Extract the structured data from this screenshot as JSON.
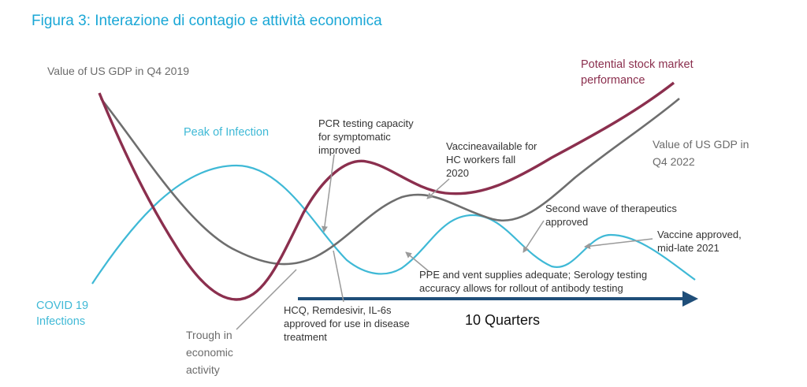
{
  "title": "Figura 3: Interazione di contagio e attività economica",
  "colors": {
    "title": "#1aa7d6",
    "cyan": "#3fb9d6",
    "maroon": "#8b2f4e",
    "gdp": "#6e6e6e",
    "arrow": "#1f4e79",
    "pointer": "#9a9a9a"
  },
  "labels": {
    "gdp_start": "Value of US GDP in Q4 2019",
    "stock": [
      "Potential stock market",
      "performance"
    ],
    "peak": "Peak of Infection",
    "pcr": [
      "PCR testing capacity",
      "for symptomatic",
      "improved"
    ],
    "vaccine_hc": [
      "Vaccineavailable for",
      "HC workers fall",
      "2020"
    ],
    "gdp_end": [
      "Value of US GDP in",
      "Q4 2022"
    ],
    "second_wave": [
      "Second wave of therapeutics",
      "approved"
    ],
    "vaccine_approved": [
      "Vaccine approved,",
      "mid-late 2021"
    ],
    "ppe": [
      "PPE and vent supplies adequate; Serology testing",
      "accuracy allows for rollout of antibody testing"
    ],
    "covid": [
      "COVID 19",
      "Infections"
    ],
    "trough": [
      "Trough in",
      "economic",
      "activity"
    ],
    "hcq": [
      "HCQ, Remdesivir, IL-6s",
      "approved for use in disease",
      "treatment"
    ],
    "quarters": "10 Quarters"
  }
}
